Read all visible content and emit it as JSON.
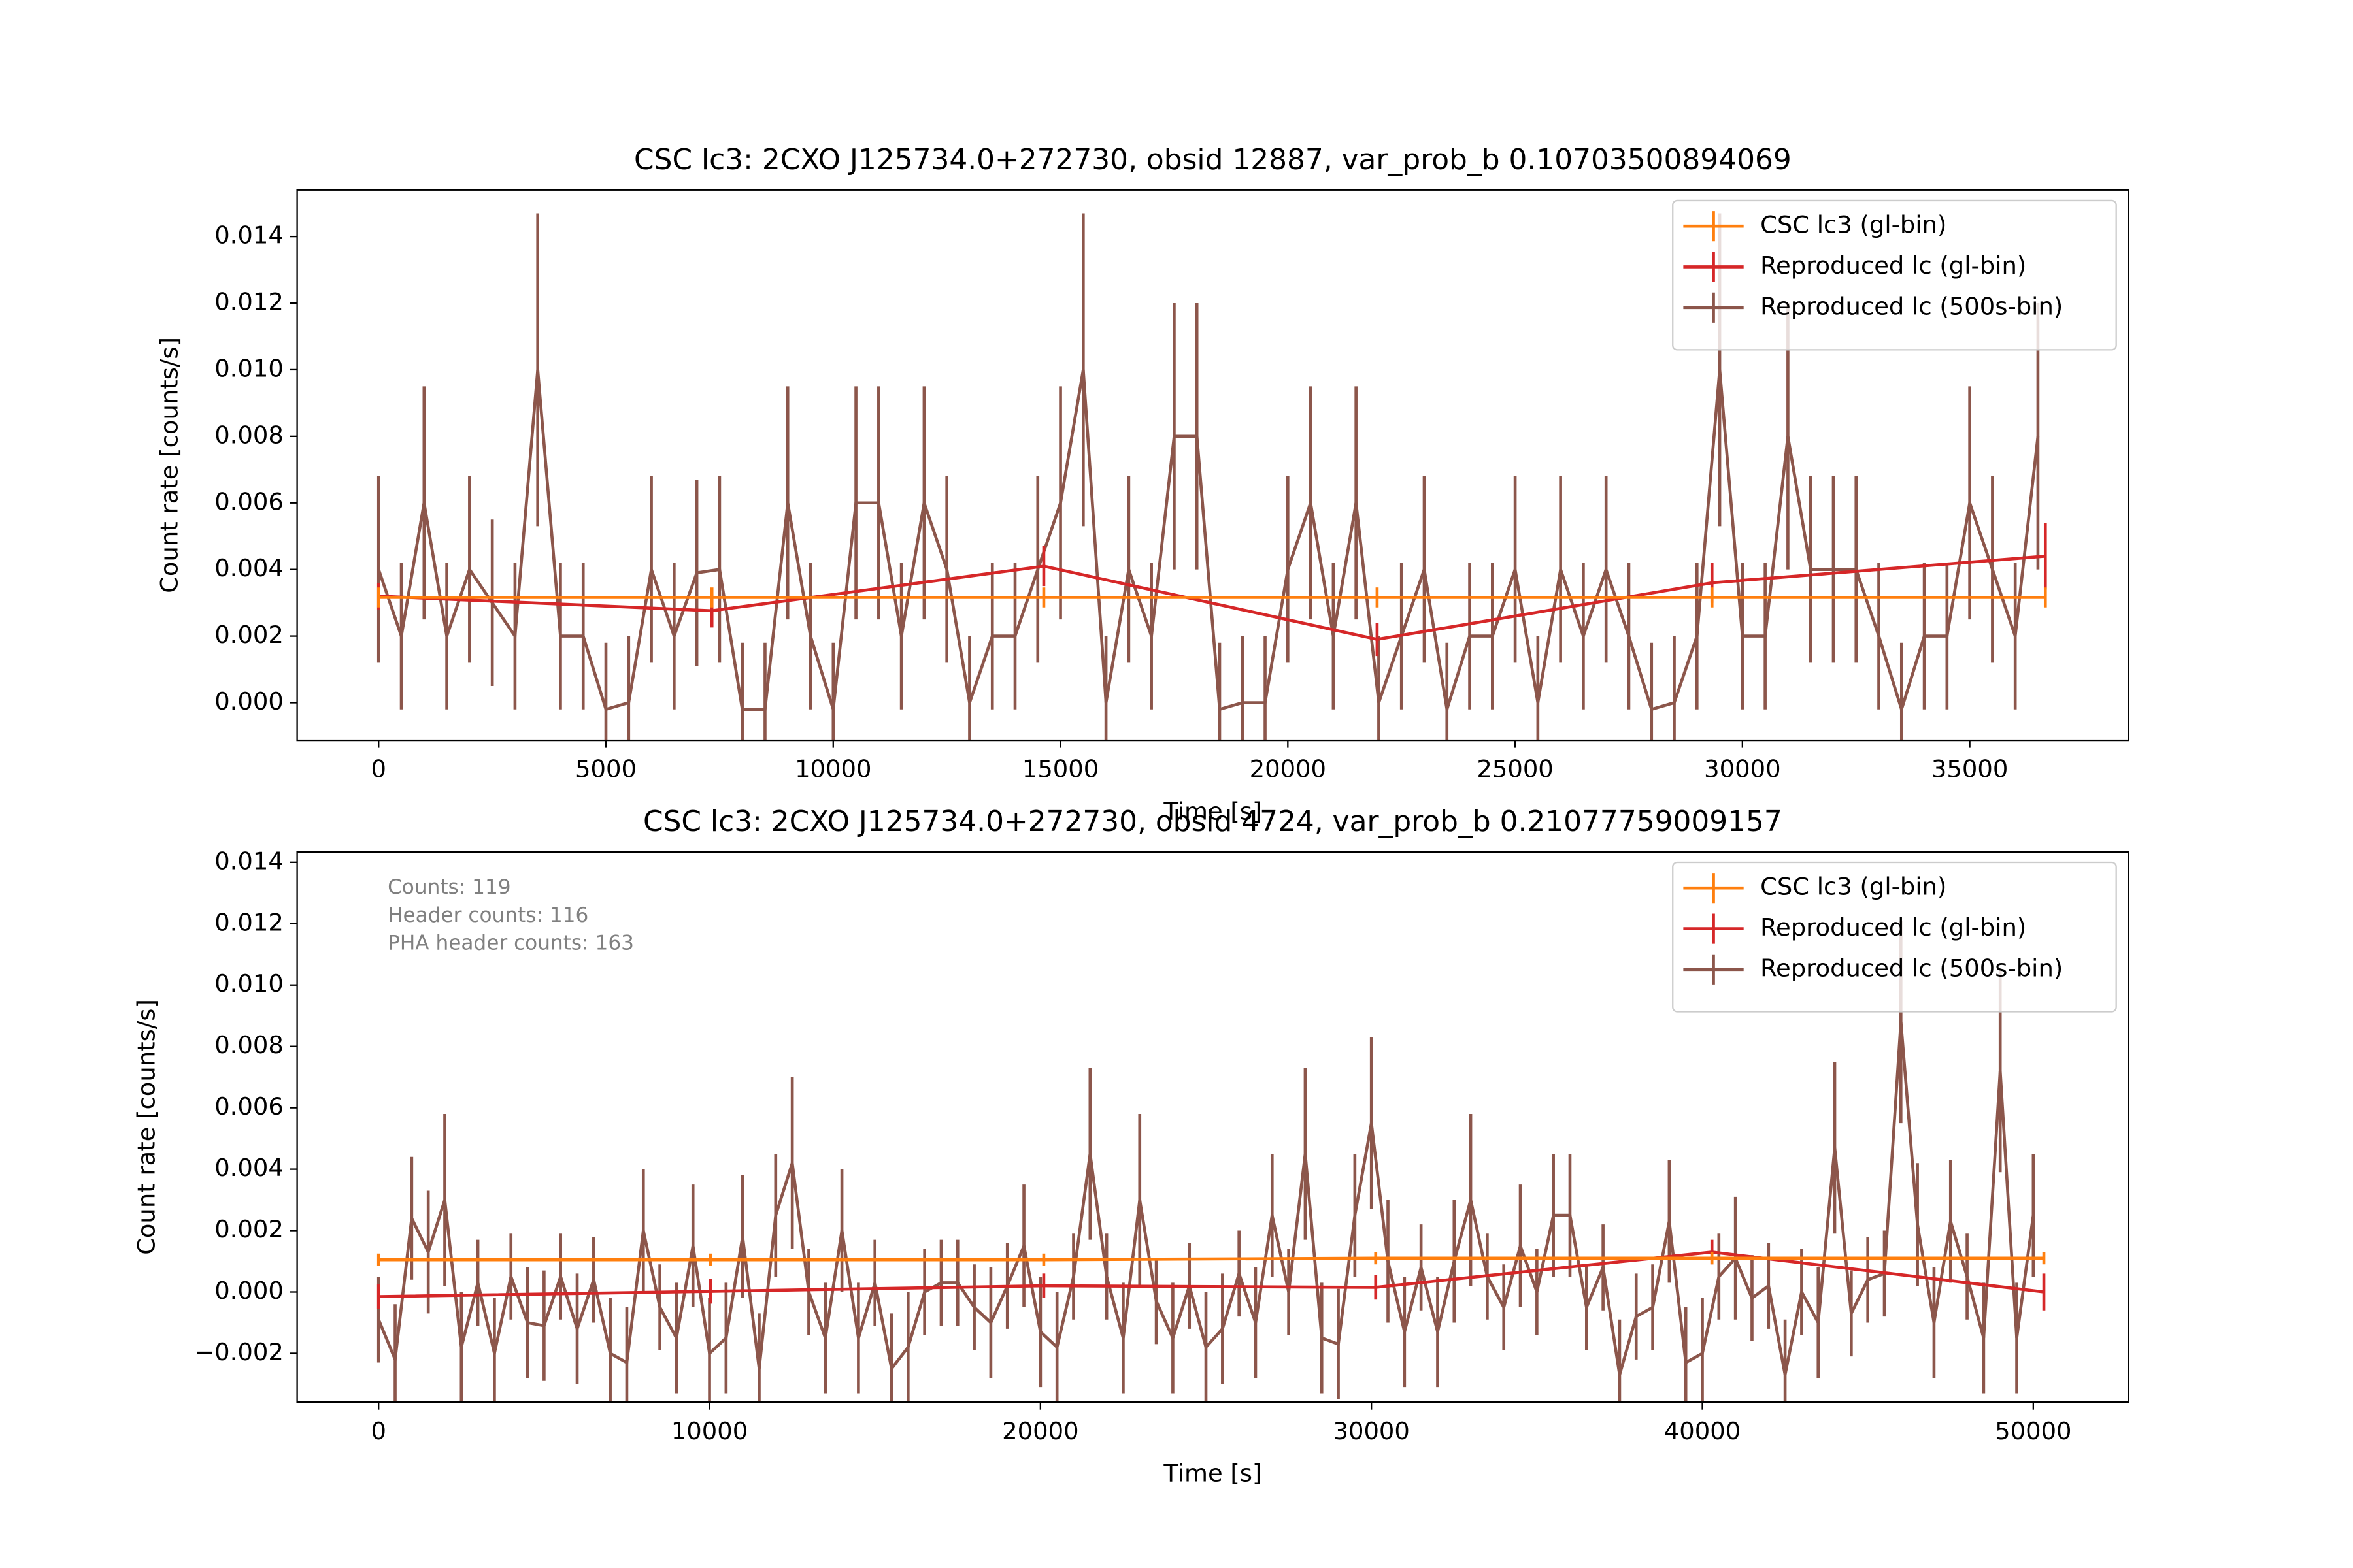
{
  "chart_data": [
    {
      "type": "line",
      "title": "CSC lc3: 2CXO J125734.0+272730, obsid 12887, var_prob_b 0.10703500894069",
      "xlabel": "Time [s]",
      "ylabel": "Count rate [counts/s]",
      "legend": "upper right",
      "xlim": [
        -1792,
        38487
      ],
      "ylim": [
        -0.00113,
        0.0154
      ],
      "xticks": [
        0,
        5000,
        10000,
        15000,
        20000,
        25000,
        30000,
        35000
      ],
      "yticks": [
        {
          "value": 0,
          "label": "0.000"
        },
        {
          "value": 0.002,
          "label": "0.002"
        },
        {
          "value": 0.004,
          "label": "0.004"
        },
        {
          "value": 0.006,
          "label": "0.006"
        },
        {
          "value": 0.008,
          "label": "0.008"
        },
        {
          "value": 0.01,
          "label": "0.010"
        },
        {
          "value": 0.012,
          "label": "0.012"
        },
        {
          "value": 0.014,
          "label": "0.014"
        }
      ],
      "series": [
        {
          "name": "CSC lc3 (gl-bin)",
          "color": "#ff7f0e",
          "x": [
            0,
            7332,
            14632,
            21964,
            29330,
            36663
          ],
          "values": [
            0.00316,
            0.00316,
            0.00316,
            0.00316,
            0.00316,
            0.00316
          ],
          "errors": [
            0.0003,
            0.0003,
            0.0003,
            0.0003,
            0.0003,
            0.0003
          ]
        },
        {
          "name": "Reproduced lc (gl-bin)",
          "color": "#d62728",
          "x": [
            0,
            7332,
            14632,
            21964,
            29330,
            36663
          ],
          "values": [
            0.0032,
            0.00276,
            0.0041,
            0.0019,
            0.0036,
            0.0044
          ],
          "errors": [
            0.0004,
            0.0005,
            0.0006,
            0.0005,
            0.0006,
            0.001
          ]
        },
        {
          "name": "Reproduced lc (500s-bin)",
          "color": "#8c564b",
          "x": [
            0,
            500,
            1000,
            1500,
            2000,
            2500,
            3000,
            3500,
            4000,
            4500,
            5000,
            5500,
            6000,
            6500,
            7000,
            7500,
            8000,
            8500,
            9000,
            9500,
            10000,
            10500,
            11000,
            11500,
            12000,
            12500,
            13000,
            13500,
            14000,
            14500,
            15000,
            15500,
            16000,
            16500,
            17000,
            17500,
            18000,
            18500,
            19000,
            19500,
            20000,
            20500,
            21000,
            21500,
            22000,
            22500,
            23000,
            23500,
            24000,
            24500,
            25000,
            25500,
            26000,
            26500,
            27000,
            27500,
            28000,
            28500,
            29000,
            29500,
            30000,
            30500,
            31000,
            31500,
            32000,
            32500,
            33000,
            33500,
            34000,
            34500,
            35000,
            35500,
            36000,
            36500
          ],
          "values": [
            0.004,
            0.002,
            0.006,
            0.002,
            0.004,
            0.003,
            0.002,
            0.01,
            0.002,
            0.002,
            -0.0002,
            0.0,
            0.004,
            0.002,
            0.0039,
            0.004,
            -0.0002,
            -0.0002,
            0.006,
            0.002,
            -0.0002,
            0.006,
            0.006,
            0.002,
            0.006,
            0.004,
            0.0,
            0.002,
            0.002,
            0.004,
            0.006,
            0.01,
            0.0,
            0.004,
            0.002,
            0.008,
            0.008,
            -0.0002,
            0.0,
            0.0,
            0.004,
            0.006,
            0.002,
            0.006,
            0.0,
            0.002,
            0.004,
            -0.0002,
            0.002,
            0.002,
            0.004,
            0.0,
            0.004,
            0.002,
            0.004,
            0.002,
            -0.0002,
            0.0,
            0.002,
            0.01,
            0.002,
            0.002,
            0.008,
            0.004,
            0.004,
            0.004,
            0.002,
            -0.0002,
            0.002,
            0.002,
            0.006,
            0.004,
            0.002,
            0.008
          ],
          "errors": [
            0.0028,
            0.0022,
            0.0035,
            0.0022,
            0.0028,
            0.0025,
            0.0022,
            0.0047,
            0.0022,
            0.0022,
            0.002,
            0.002,
            0.0028,
            0.0022,
            0.0028,
            0.0028,
            0.002,
            0.002,
            0.0035,
            0.0022,
            0.002,
            0.0035,
            0.0035,
            0.0022,
            0.0035,
            0.0028,
            0.002,
            0.0022,
            0.0022,
            0.0028,
            0.0035,
            0.0047,
            0.002,
            0.0028,
            0.0022,
            0.004,
            0.004,
            0.002,
            0.002,
            0.002,
            0.0028,
            0.0035,
            0.0022,
            0.0035,
            0.002,
            0.0022,
            0.0028,
            0.002,
            0.0022,
            0.0022,
            0.0028,
            0.002,
            0.0028,
            0.0022,
            0.0028,
            0.0022,
            0.002,
            0.002,
            0.0022,
            0.0047,
            0.0022,
            0.0022,
            0.004,
            0.0028,
            0.0028,
            0.0028,
            0.0022,
            0.002,
            0.0022,
            0.0022,
            0.0035,
            0.0028,
            0.0022,
            0.004
          ]
        }
      ]
    },
    {
      "type": "line",
      "title": "CSC lc3: 2CXO J125734.0+272730, obsid 4724, var_prob_b 0.21077759009157",
      "xlabel": "Time [s]",
      "ylabel": "Count rate [counts/s]",
      "legend": "upper right",
      "annotations": [
        "Counts: 119",
        "Header counts: 116",
        "PHA header counts: 163"
      ],
      "xlim": [
        -2461,
        52870
      ],
      "ylim": [
        -0.00359,
        0.01434
      ],
      "xticks": [
        0,
        10000,
        20000,
        30000,
        40000,
        50000
      ],
      "yticks": [
        {
          "value": -0.002,
          "label": "−0.002"
        },
        {
          "value": 0,
          "label": "0.000"
        },
        {
          "value": 0.002,
          "label": "0.002"
        },
        {
          "value": 0.004,
          "label": "0.004"
        },
        {
          "value": 0.006,
          "label": "0.006"
        },
        {
          "value": 0.008,
          "label": "0.008"
        },
        {
          "value": 0.01,
          "label": "0.010"
        },
        {
          "value": 0.012,
          "label": "0.012"
        },
        {
          "value": 0.014,
          "label": "0.014"
        }
      ],
      "series": [
        {
          "name": "CSC lc3 (gl-bin)",
          "color": "#ff7f0e",
          "x": [
            0,
            10030,
            20100,
            30130,
            40290,
            50320
          ],
          "values": [
            0.00105,
            0.00105,
            0.00105,
            0.0011,
            0.0011,
            0.0011
          ],
          "errors": [
            0.0002,
            0.0002,
            0.0002,
            0.0002,
            0.0002,
            0.0002
          ]
        },
        {
          "name": "Reproduced lc (gl-bin)",
          "color": "#d62728",
          "x": [
            0,
            10030,
            20100,
            30130,
            40290,
            50320
          ],
          "values": [
            -0.00015,
            2e-05,
            0.0002,
            0.00015,
            0.0013,
            0.0
          ],
          "errors": [
            0.0004,
            0.0004,
            0.0004,
            0.0004,
            0.0004,
            0.0006
          ]
        },
        {
          "name": "Reproduced lc (500s-bin)",
          "color": "#8c564b",
          "x": [
            0,
            500,
            1000,
            1500,
            2000,
            2500,
            3000,
            3500,
            4000,
            4500,
            5000,
            5500,
            6000,
            6500,
            7000,
            7500,
            8000,
            8500,
            9000,
            9500,
            10000,
            10500,
            11000,
            11500,
            12000,
            12500,
            13000,
            13500,
            14000,
            14500,
            15000,
            15500,
            16000,
            16500,
            17000,
            17500,
            18000,
            18500,
            19000,
            19500,
            20000,
            20500,
            21000,
            21500,
            22000,
            22500,
            23000,
            23500,
            24000,
            24500,
            25000,
            25500,
            26000,
            26500,
            27000,
            27500,
            28000,
            28500,
            29000,
            29500,
            30000,
            30500,
            31000,
            31500,
            32000,
            32500,
            33000,
            33500,
            34000,
            34500,
            35000,
            35500,
            36000,
            36500,
            37000,
            37500,
            38000,
            38500,
            39000,
            39500,
            40000,
            40500,
            41000,
            41500,
            42000,
            42500,
            43000,
            43500,
            44000,
            44500,
            45000,
            45500,
            46000,
            46500,
            47000,
            47500,
            48000,
            48500,
            49000,
            49500,
            50000
          ],
          "values": [
            -0.0009,
            -0.0022,
            0.0024,
            0.0013,
            0.003,
            -0.0018,
            0.0003,
            -0.002,
            0.0005,
            -0.001,
            -0.0011,
            0.0005,
            -0.0012,
            0.0004,
            -0.002,
            -0.0023,
            0.002,
            -0.0005,
            -0.0015,
            0.0015,
            -0.002,
            -0.0015,
            0.0018,
            -0.0025,
            0.0025,
            0.0042,
            0.0,
            -0.0015,
            0.002,
            -0.0015,
            0.0003,
            -0.0025,
            -0.0018,
            0.0,
            0.0003,
            0.0003,
            -0.0005,
            -0.001,
            0.0002,
            0.0015,
            -0.0013,
            -0.0018,
            0.0005,
            0.0045,
            0.0005,
            -0.0015,
            0.003,
            -0.0003,
            -0.0015,
            0.0002,
            -0.0018,
            -0.0012,
            0.0006,
            -0.001,
            0.0025,
            0.0,
            0.0045,
            -0.0015,
            -0.0017,
            0.0025,
            0.0055,
            0.001,
            -0.0013,
            0.0008,
            -0.0013,
            0.001,
            0.003,
            0.0005,
            -0.0005,
            0.0015,
            0.0,
            0.0025,
            0.0025,
            -0.0005,
            0.0008,
            -0.0027,
            -0.0008,
            -0.0005,
            0.0023,
            -0.0023,
            -0.002,
            0.0005,
            0.0011,
            -0.0002,
            0.0002,
            -0.0027,
            0.0,
            -0.001,
            0.0047,
            -0.0007,
            0.0004,
            0.0006,
            0.0088,
            0.0022,
            -0.001,
            0.0023,
            0.0005,
            -0.0015,
            0.0072,
            -0.0015,
            0.0025
          ],
          "errors": [
            0.0014,
            0.0018,
            0.002,
            0.002,
            0.0028,
            0.0018,
            0.0014,
            0.0018,
            0.0014,
            0.0018,
            0.0018,
            0.0014,
            0.0018,
            0.0014,
            0.0018,
            0.0018,
            0.002,
            0.0014,
            0.0018,
            0.002,
            0.0018,
            0.0018,
            0.002,
            0.0018,
            0.002,
            0.0028,
            0.0014,
            0.0018,
            0.002,
            0.0018,
            0.0014,
            0.0018,
            0.0018,
            0.0014,
            0.0014,
            0.0014,
            0.0014,
            0.0018,
            0.0014,
            0.002,
            0.0018,
            0.0018,
            0.0014,
            0.0028,
            0.0014,
            0.0018,
            0.0028,
            0.0014,
            0.0018,
            0.0014,
            0.0018,
            0.0018,
            0.0014,
            0.0018,
            0.002,
            0.0014,
            0.0028,
            0.0018,
            0.0018,
            0.002,
            0.0028,
            0.002,
            0.0018,
            0.0014,
            0.0018,
            0.002,
            0.0028,
            0.0014,
            0.0014,
            0.002,
            0.0014,
            0.002,
            0.002,
            0.0014,
            0.0014,
            0.0018,
            0.0014,
            0.0014,
            0.002,
            0.0018,
            0.0018,
            0.0014,
            0.002,
            0.0014,
            0.0014,
            0.0018,
            0.0014,
            0.0018,
            0.0028,
            0.0014,
            0.0014,
            0.0014,
            0.0033,
            0.002,
            0.0018,
            0.002,
            0.0014,
            0.0018,
            0.0033,
            0.0018,
            0.002
          ]
        }
      ]
    }
  ]
}
